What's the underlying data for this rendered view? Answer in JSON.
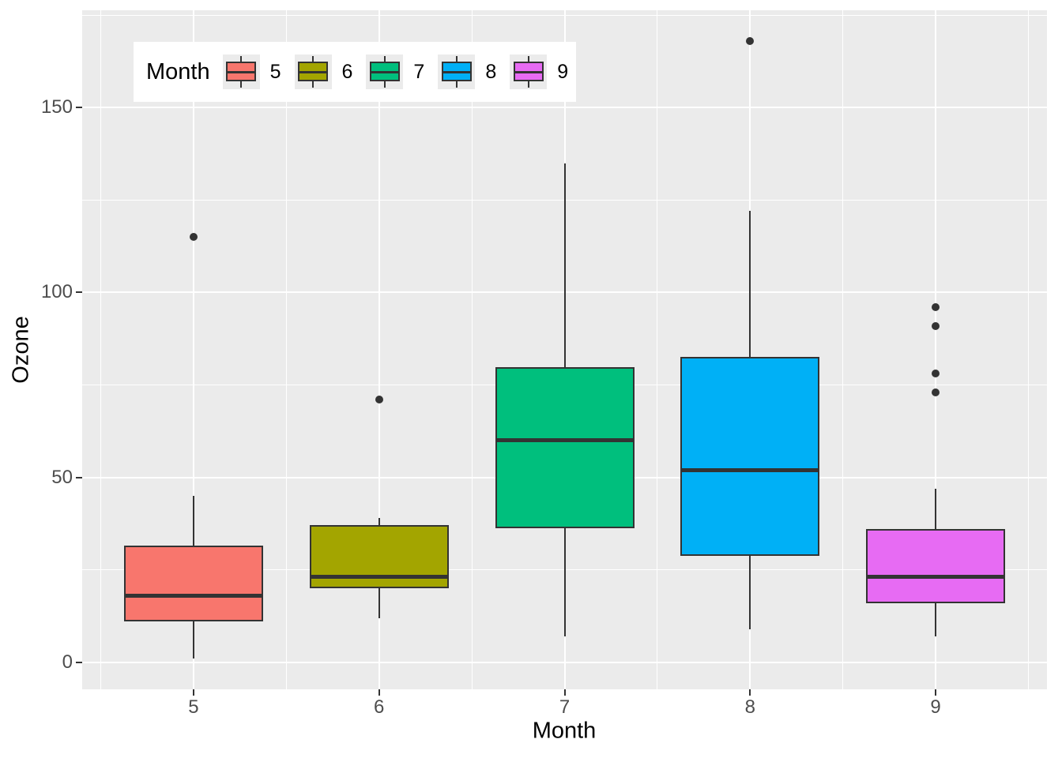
{
  "chart_data": {
    "type": "boxplot",
    "title": "",
    "xlabel": "Month",
    "ylabel": "Ozone",
    "x_tick_labels": [
      "5",
      "6",
      "7",
      "8",
      "9"
    ],
    "y_tick_values": [
      0,
      50,
      100,
      150
    ],
    "y_tick_labels": [
      "0",
      "50",
      "100",
      "150"
    ],
    "y_minor_values": [
      25,
      75,
      125,
      175
    ],
    "ylim": [
      -7.35,
      176.35
    ],
    "grid": "on",
    "legend": {
      "title": "Month",
      "position": "top-left-inside",
      "entries": [
        "5",
        "6",
        "7",
        "8",
        "9"
      ]
    },
    "series": [
      {
        "month": "5",
        "color": "#F8766D",
        "lower_whisker": 1,
        "q1": 11,
        "median": 18,
        "q3": 31.5,
        "upper_whisker": 45,
        "outliers": [
          115
        ]
      },
      {
        "month": "6",
        "color": "#A3A500",
        "lower_whisker": 12,
        "q1": 20,
        "median": 23,
        "q3": 37,
        "upper_whisker": 39,
        "outliers": [
          71
        ]
      },
      {
        "month": "7",
        "color": "#00BF7D",
        "lower_whisker": 7,
        "q1": 36.25,
        "median": 60,
        "q3": 79.75,
        "upper_whisker": 135,
        "outliers": []
      },
      {
        "month": "8",
        "color": "#00B0F6",
        "lower_whisker": 9,
        "q1": 28.75,
        "median": 52,
        "q3": 82.5,
        "upper_whisker": 122,
        "outliers": [
          168
        ]
      },
      {
        "month": "9",
        "color": "#E76BF3",
        "lower_whisker": 7,
        "q1": 16,
        "median": 23,
        "q3": 36,
        "upper_whisker": 47,
        "outliers": [
          96,
          91,
          78,
          73
        ]
      }
    ],
    "colors": {
      "panel_bg": "#EBEBEB",
      "grid": "#FFFFFF",
      "box_stroke": "#333333",
      "axis_text": "#4D4D4D",
      "title_text": "#000000",
      "legend_bg": "#FFFFFF",
      "legend_key_bg": "#EBEBEB"
    }
  }
}
